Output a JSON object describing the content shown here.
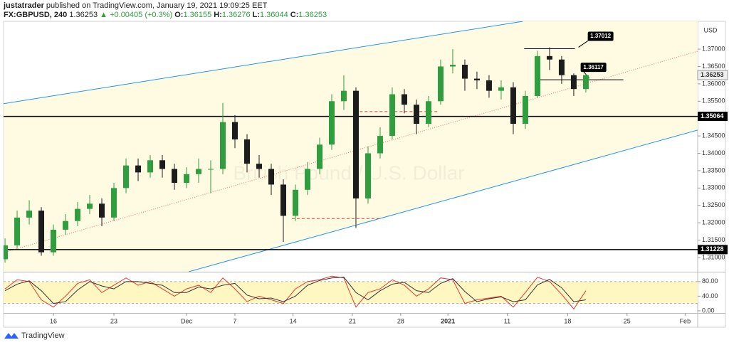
{
  "header": {
    "author": "justatrader",
    "published": "published on TradingView.com, January 19, 2021 19:09:25 EET",
    "symbol": "FX:GBPUSD, 240",
    "last": "1.36253",
    "change": "+0.00405 (+0.3%)",
    "ohlc": [
      {
        "label": "O:",
        "value": "1.36155"
      },
      {
        "label": "H:",
        "value": "1.36276"
      },
      {
        "label": "L:",
        "value": "1.36044"
      },
      {
        "label": "C:",
        "value": "1.36253"
      }
    ]
  },
  "footer": {
    "brand": "TradingView"
  },
  "chart_data": [
    {
      "type": "candlestick",
      "currency": "USD",
      "watermark": "British Pound / U.S. Dollar",
      "up_color": "#2e9e3e",
      "down_color": "#1c1c1c",
      "x": [
        -4,
        -3,
        -2,
        -1,
        0,
        1,
        2,
        3,
        4,
        5,
        6,
        7,
        8,
        9,
        10,
        11,
        12,
        13,
        14,
        15,
        16,
        17,
        18,
        19,
        20,
        21,
        22,
        23,
        24,
        25,
        26,
        27,
        28,
        29,
        30,
        31,
        32,
        33,
        34,
        35,
        36,
        37,
        38,
        39,
        40,
        41,
        42,
        43,
        44
      ],
      "open": [
        1.3095,
        1.3135,
        1.3215,
        1.3235,
        1.3115,
        1.318,
        1.3205,
        1.324,
        1.3255,
        1.3215,
        1.33,
        1.3365,
        1.3345,
        1.338,
        1.3355,
        1.3315,
        1.334,
        1.3355,
        1.3355,
        1.349,
        1.344,
        1.337,
        1.3355,
        1.331,
        1.322,
        1.3295,
        1.3355,
        1.3425,
        1.355,
        1.358,
        1.327,
        1.34,
        1.345,
        1.357,
        1.354,
        1.3485,
        1.355,
        1.365,
        1.3655,
        1.3615,
        1.361,
        1.358,
        1.359,
        1.3485,
        1.3565,
        1.368,
        1.367,
        1.3625,
        1.3585
      ],
      "high": [
        1.3155,
        1.3235,
        1.3265,
        1.3245,
        1.3195,
        1.3225,
        1.326,
        1.328,
        1.327,
        1.3315,
        1.3385,
        1.3385,
        1.3395,
        1.3395,
        1.337,
        1.336,
        1.3385,
        1.338,
        1.3545,
        1.351,
        1.3455,
        1.3395,
        1.337,
        1.3325,
        1.331,
        1.3375,
        1.3445,
        1.357,
        1.3625,
        1.359,
        1.342,
        1.3475,
        1.359,
        1.3585,
        1.3555,
        1.3565,
        1.367,
        1.37,
        1.367,
        1.3635,
        1.3625,
        1.361,
        1.3605,
        1.358,
        1.3695,
        1.3705,
        1.368,
        1.363,
        1.36276
      ],
      "low": [
        1.3085,
        1.3125,
        1.3195,
        1.3105,
        1.3105,
        1.3165,
        1.319,
        1.3225,
        1.319,
        1.3205,
        1.3285,
        1.332,
        1.333,
        1.333,
        1.3295,
        1.33,
        1.3315,
        1.3285,
        1.334,
        1.3415,
        1.3345,
        1.333,
        1.328,
        1.3145,
        1.3205,
        1.328,
        1.334,
        1.341,
        1.3525,
        1.3185,
        1.3255,
        1.3385,
        1.344,
        1.3515,
        1.3455,
        1.3475,
        1.354,
        1.363,
        1.358,
        1.3585,
        1.356,
        1.3555,
        1.3455,
        1.347,
        1.356,
        1.364,
        1.36,
        1.3565,
        1.3575
      ],
      "close": [
        1.3135,
        1.3215,
        1.3235,
        1.3115,
        1.318,
        1.3205,
        1.324,
        1.3255,
        1.3215,
        1.33,
        1.3365,
        1.3345,
        1.338,
        1.3355,
        1.3315,
        1.334,
        1.3355,
        1.3355,
        1.349,
        1.344,
        1.337,
        1.3355,
        1.331,
        1.322,
        1.3295,
        1.3355,
        1.3425,
        1.355,
        1.358,
        1.327,
        1.34,
        1.345,
        1.357,
        1.354,
        1.3485,
        1.355,
        1.365,
        1.3655,
        1.3615,
        1.361,
        1.358,
        1.359,
        1.3485,
        1.3565,
        1.368,
        1.367,
        1.3625,
        1.3585,
        1.36253
      ],
      "xlim": [
        -4.12,
        53.24
      ],
      "xticks": [
        {
          "value": 0,
          "label": "16"
        },
        {
          "value": 5,
          "label": "23"
        },
        {
          "value": 11,
          "label": "Dec"
        },
        {
          "value": 15,
          "label": "7"
        },
        {
          "value": 19.8,
          "label": "14"
        },
        {
          "value": 24.7,
          "label": "21"
        },
        {
          "value": 28.7,
          "label": "28"
        },
        {
          "value": 32.6,
          "label": "2021"
        },
        {
          "value": 37.5,
          "label": "11"
        },
        {
          "value": 42.5,
          "label": "18"
        },
        {
          "value": 47.4,
          "label": "25"
        },
        {
          "value": 52.2,
          "label": "Feb"
        }
      ],
      "ylim": [
        1.3059,
        1.378
      ],
      "yticks": [
        {
          "value": 1.31,
          "label": "1.31000"
        },
        {
          "value": 1.315,
          "label": "1.31500"
        },
        {
          "value": 1.32,
          "label": "1.32000"
        },
        {
          "value": 1.325,
          "label": "1.32500"
        },
        {
          "value": 1.33,
          "label": "1.33000"
        },
        {
          "value": 1.335,
          "label": "1.33500"
        },
        {
          "value": 1.34,
          "label": "1.34000"
        },
        {
          "value": 1.345,
          "label": "1.34500"
        },
        {
          "value": 1.355,
          "label": "1.35500"
        },
        {
          "value": 1.36,
          "label": "1.36000"
        },
        {
          "value": 1.365,
          "label": "1.36500"
        },
        {
          "value": 1.37,
          "label": "1.37000"
        }
      ],
      "last_price": 1.36253,
      "price_lines": [
        {
          "value": 1.35064,
          "color": "#000000"
        },
        {
          "value": 1.31228,
          "color": "#000000"
        }
      ],
      "trend_lines": [
        {
          "color": "#2196f3",
          "x": [
            -4.12,
            38.8
          ],
          "y": [
            1.3543,
            1.378
          ]
        },
        {
          "color": "#2196f3",
          "x": [
            11.18,
            53.24
          ],
          "y": [
            1.3059,
            1.3467
          ]
        },
        {
          "color": "#e57373",
          "dotted": true,
          "x": [
            -4.12,
            53.24
          ],
          "y": [
            1.3114,
            1.3694
          ]
        }
      ],
      "channel_fill": "#fffbe3",
      "segments": [
        {
          "value": 1.37012,
          "x": [
            38.9,
            43.1
          ],
          "color": "#000000",
          "callout": true
        },
        {
          "value": 1.36117,
          "x": [
            39.8,
            47.1
          ],
          "color": "#000000",
          "callout": true
        },
        {
          "value": 1.352,
          "x": [
            24.9,
            31.9
          ],
          "color": "#e53935",
          "dashed": true
        },
        {
          "value": 1.3212,
          "x": [
            19.7,
            27.1
          ],
          "color": "#e53935",
          "dashed": true
        }
      ]
    },
    {
      "type": "oscillator",
      "ylim": [
        -6,
        105
      ],
      "yticks": [
        {
          "value": 80,
          "label": "80.00"
        },
        {
          "value": 40,
          "label": "40.00"
        },
        {
          "value": 0,
          "label": "0.00"
        }
      ],
      "band": [
        20,
        80
      ],
      "band_color": "#fff7c2",
      "series": [
        {
          "color": "#e53935",
          "values": [
            60,
            85,
            80,
            30,
            10,
            40,
            75,
            85,
            50,
            70,
            90,
            70,
            80,
            60,
            40,
            60,
            70,
            50,
            90,
            60,
            25,
            40,
            30,
            20,
            60,
            80,
            85,
            95,
            90,
            10,
            50,
            60,
            85,
            70,
            40,
            60,
            90,
            85,
            20,
            30,
            35,
            40,
            10,
            50,
            92,
            80,
            45,
            5,
            55
          ]
        },
        {
          "color": "#333333",
          "values": [
            55,
            73,
            82,
            55,
            20,
            25,
            57,
            80,
            68,
            60,
            80,
            80,
            75,
            70,
            50,
            50,
            65,
            60,
            70,
            75,
            43,
            33,
            35,
            25,
            40,
            70,
            83,
            90,
            92,
            50,
            30,
            55,
            73,
            78,
            55,
            50,
            75,
            88,
            53,
            25,
            33,
            38,
            25,
            30,
            71,
            86,
            63,
            25,
            30
          ]
        }
      ]
    }
  ]
}
